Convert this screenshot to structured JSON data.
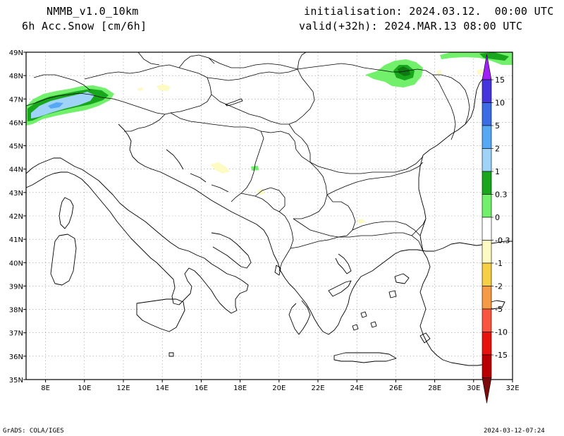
{
  "header": {
    "model": "NMMB_v1.0_10km",
    "variable": "6h Acc.Snow [cm/6h]",
    "init": "initialisation: 2024.03.12.  00:00 UTC",
    "valid": "valid(+32h): 2024.MAR.13 08:00 UTC"
  },
  "footer": {
    "left": "GrADS: COLA/IGES",
    "right": "2024-03-12-07:24"
  },
  "axes": {
    "lon_labels": [
      "8E",
      "10E",
      "12E",
      "14E",
      "16E",
      "18E",
      "20E",
      "22E",
      "24E",
      "26E",
      "28E",
      "30E",
      "32E"
    ],
    "lat_labels": [
      "49N",
      "48N",
      "47N",
      "46N",
      "45N",
      "44N",
      "43N",
      "42N",
      "41N",
      "40N",
      "39N",
      "38N",
      "37N",
      "36N",
      "35N"
    ]
  },
  "colorbar": {
    "colors": [
      "#7b0a0a",
      "#b80000",
      "#e8120d",
      "#f9563f",
      "#f59a46",
      "#f5cf45",
      "#fdfbc3",
      "#ffffff",
      "#72f06b",
      "#17a61c",
      "#9fd3f7",
      "#57a8f2",
      "#3b6ce4",
      "#4436dd",
      "#9f20f5"
    ],
    "labels": [
      "-15",
      "-10",
      "-5",
      "-2",
      "-1",
      "-0.3",
      "0",
      "0.3",
      "1",
      "2",
      "5",
      "10",
      "15"
    ]
  },
  "snow_colors": {
    "light_yellow": "#fdfbc3",
    "light_green": "#72f06b",
    "green": "#17a61c",
    "dark_green": "#0d7a12",
    "light_blue": "#9fd3f7",
    "blue": "#57a8f2"
  }
}
